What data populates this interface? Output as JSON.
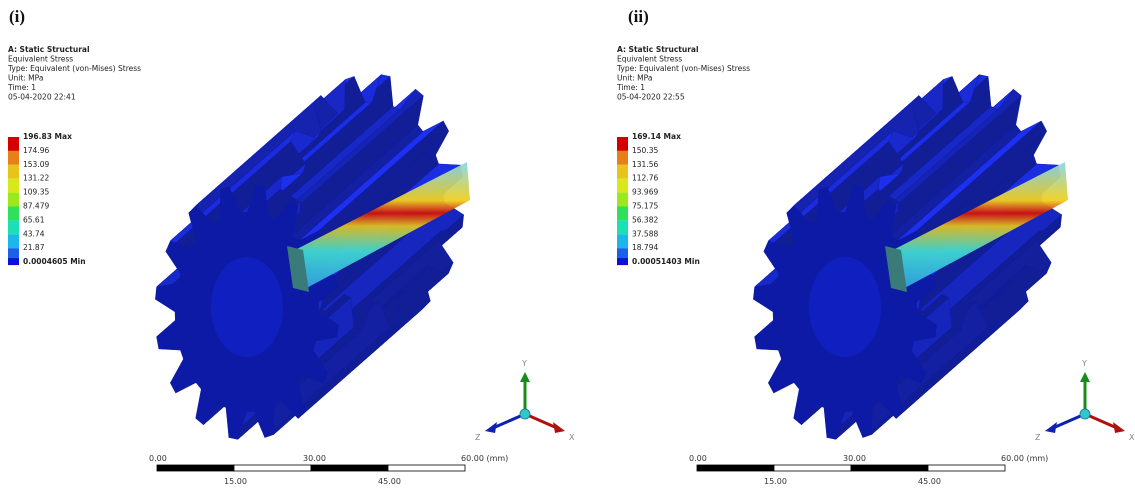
{
  "panels": [
    {
      "label": "(i)",
      "info": [
        "A: Static Structural",
        "Equivalent Stress",
        "Type: Equivalent (von-Mises) Stress",
        "Unit: MPa",
        "Time: 1",
        "05-04-2020 22:41"
      ],
      "legend": [
        "196.83 Max",
        "174.96",
        "153.09",
        "131.22",
        "109.35",
        "87.479",
        "65.61",
        "43.74",
        "21.87",
        "0.0004605 Min"
      ],
      "scale_top": [
        "0.00",
        "30.00",
        "60.00 (mm)"
      ],
      "scale_bottom": [
        "15.00",
        "45.00"
      ],
      "axes": [
        "Y",
        "Z",
        "X"
      ]
    },
    {
      "label": "(ii)",
      "info": [
        "A: Static Structural",
        "Equivalent Stress",
        "Type: Equivalent (von-Mises) Stress",
        "Unit: MPa",
        "Time: 1",
        "05-04-2020 22:55"
      ],
      "legend": [
        "169.14 Max",
        "150.35",
        "131.56",
        "112.76",
        "93.969",
        "75.175",
        "56.382",
        "37.588",
        "18.794",
        "0.00051403 Min"
      ],
      "scale_top": [
        "0.00",
        "30.00",
        "60.00 (mm)"
      ],
      "scale_bottom": [
        "15.00",
        "45.00"
      ],
      "axes": [
        "Y",
        "Z",
        "X"
      ]
    }
  ]
}
